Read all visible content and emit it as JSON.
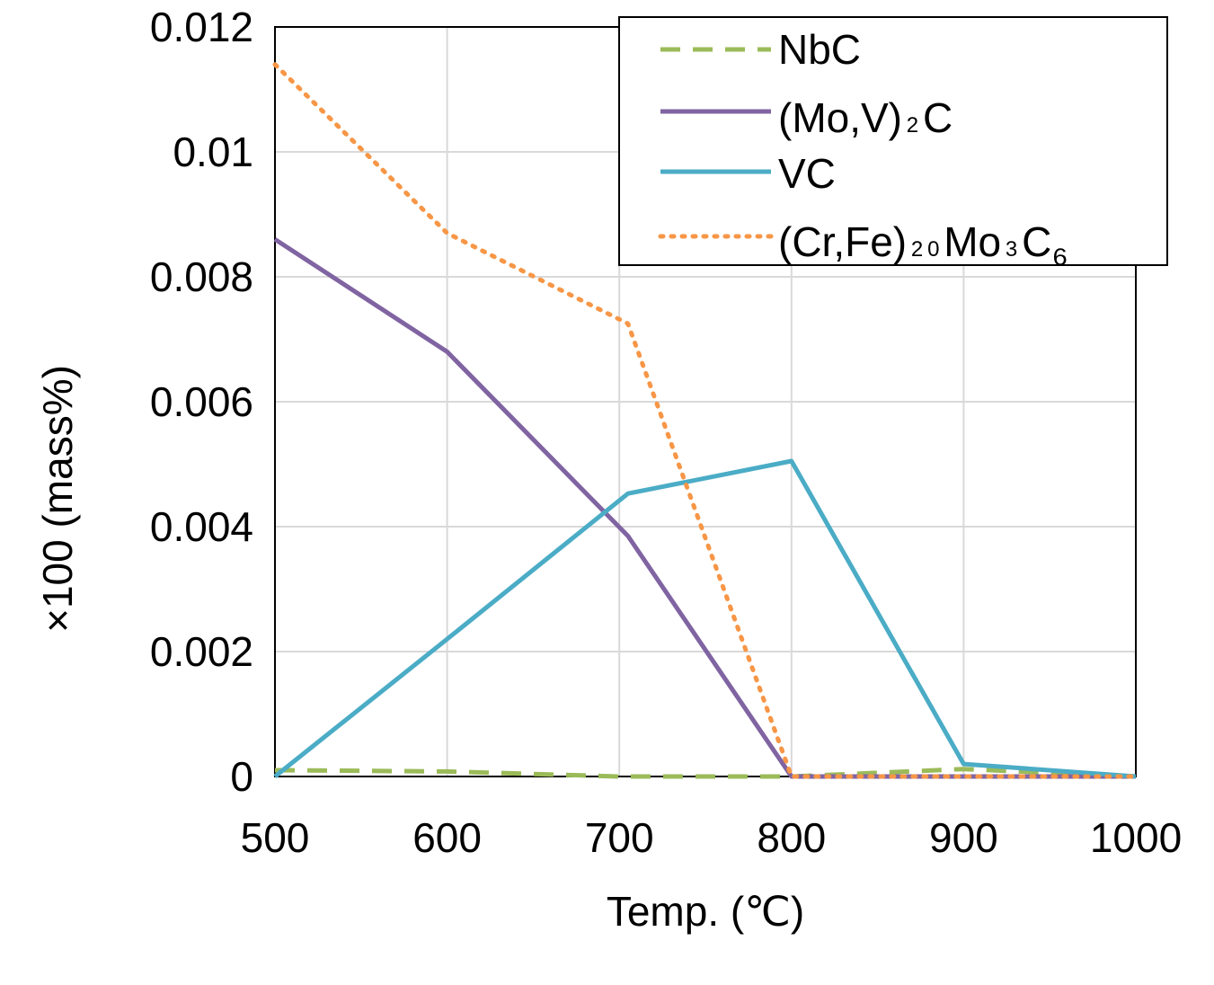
{
  "chart_data": {
    "type": "line",
    "title": "",
    "xlabel": "Temp. (℃)",
    "ylabel": "×100 (mass%)",
    "xlim": [
      500,
      1000
    ],
    "ylim": [
      0,
      0.012
    ],
    "xticks": [
      "500",
      "600",
      "700",
      "800",
      "900",
      "1000"
    ],
    "yticks": [
      "0",
      "0.002",
      "0.004",
      "0.006",
      "0.008",
      "0.01",
      "0.012"
    ],
    "grid": true,
    "legend_position": "top-right",
    "series": [
      {
        "name": "NbC",
        "color": "#9bbb59",
        "style": "dashed",
        "x": [
          500,
          600,
          700,
          800,
          900,
          1000
        ],
        "y": [
          0.0001,
          8e-05,
          0.0,
          0.0,
          0.00012,
          0.0
        ]
      },
      {
        "name": "(Mo,V)₂C",
        "color": "#8064a2",
        "style": "solid",
        "x": [
          500,
          600,
          705,
          800,
          900,
          1000
        ],
        "y": [
          0.0086,
          0.0068,
          0.00385,
          0.0,
          0.0,
          0.0
        ]
      },
      {
        "name": "VC",
        "color": "#4bacc6",
        "style": "solid",
        "x": [
          500,
          600,
          705,
          800,
          900,
          1000
        ],
        "y": [
          0.0,
          0.0022,
          0.00453,
          0.00505,
          0.0002,
          0.0
        ]
      },
      {
        "name": "(Cr,Fe)₂₀Mo₃C₆",
        "color": "#f79646",
        "style": "dotted",
        "x": [
          500,
          600,
          705,
          800,
          900,
          1000
        ],
        "y": [
          0.0114,
          0.0087,
          0.00725,
          0.0,
          0.0,
          0.0
        ]
      }
    ]
  }
}
